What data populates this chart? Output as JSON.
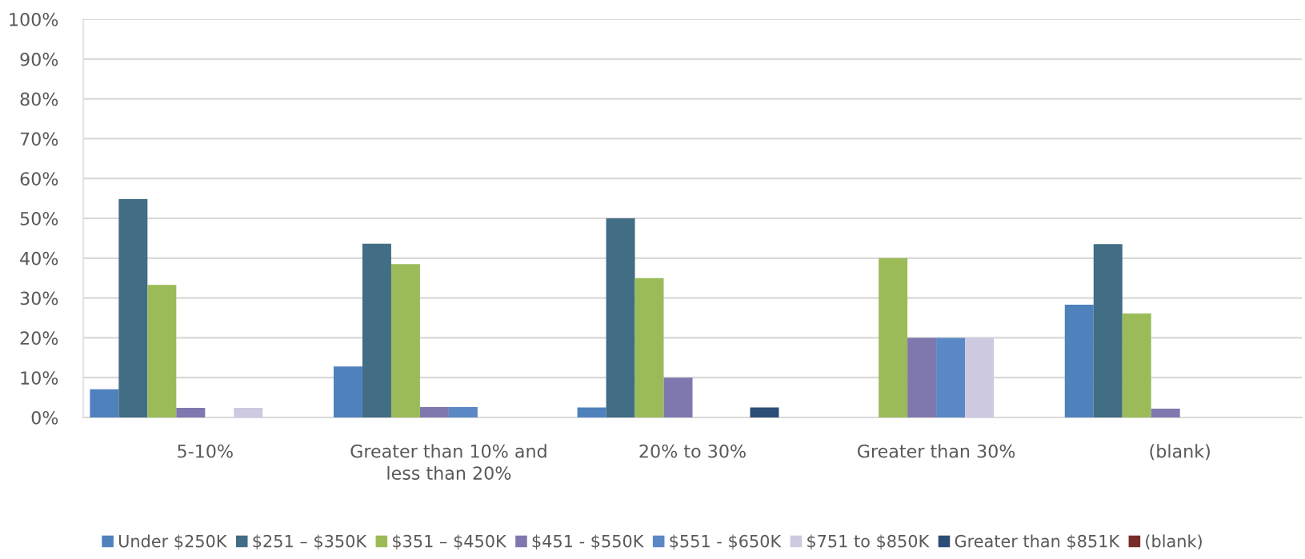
{
  "chart_data": {
    "type": "bar",
    "categories": [
      "5-10%",
      "Greater than 10% and\nless than 20%",
      "20% to 30%",
      "Greater than 30%",
      "(blank)"
    ],
    "series": [
      {
        "name": "Under $250K",
        "color": "#4f81bd",
        "values": [
          7.1,
          12.8,
          2.5,
          null,
          28.3
        ]
      },
      {
        "name": "$251 – $350K",
        "color": "#416d85",
        "values": [
          54.8,
          43.6,
          50,
          null,
          43.5
        ]
      },
      {
        "name": "$351 – $450K",
        "color": "#9bbb59",
        "values": [
          33.3,
          38.5,
          35,
          40,
          26.1
        ]
      },
      {
        "name": "$451 - $550K",
        "color": "#7f78ae",
        "values": [
          2.4,
          2.6,
          10,
          20,
          2.2
        ]
      },
      {
        "name": "$551 - $650K",
        "color": "#5a89c6",
        "values": [
          null,
          2.6,
          null,
          20,
          null
        ]
      },
      {
        "name": "$751 to $850K",
        "color": "#ccc9e1",
        "values": [
          2.4,
          null,
          null,
          20,
          null
        ]
      },
      {
        "name": "Greater than $851K",
        "color": "#2c4d75",
        "values": [
          null,
          null,
          2.5,
          null,
          null
        ]
      },
      {
        "name": "(blank)",
        "color": "#772c2a",
        "values": [
          null,
          null,
          null,
          null,
          null
        ]
      }
    ],
    "ylim": [
      0,
      100
    ],
    "yticks": [
      {
        "value": 0,
        "label": "0%"
      },
      {
        "value": 10,
        "label": "10%"
      },
      {
        "value": 20,
        "label": "20%"
      },
      {
        "value": 30,
        "label": "30%"
      },
      {
        "value": 40,
        "label": "40%"
      },
      {
        "value": 50,
        "label": "50%"
      },
      {
        "value": 60,
        "label": "60%"
      },
      {
        "value": 70,
        "label": "70%"
      },
      {
        "value": 80,
        "label": "80%"
      },
      {
        "value": 90,
        "label": "90%"
      },
      {
        "value": 100,
        "label": "100%"
      }
    ],
    "grid": "y",
    "legend": "bottom"
  }
}
